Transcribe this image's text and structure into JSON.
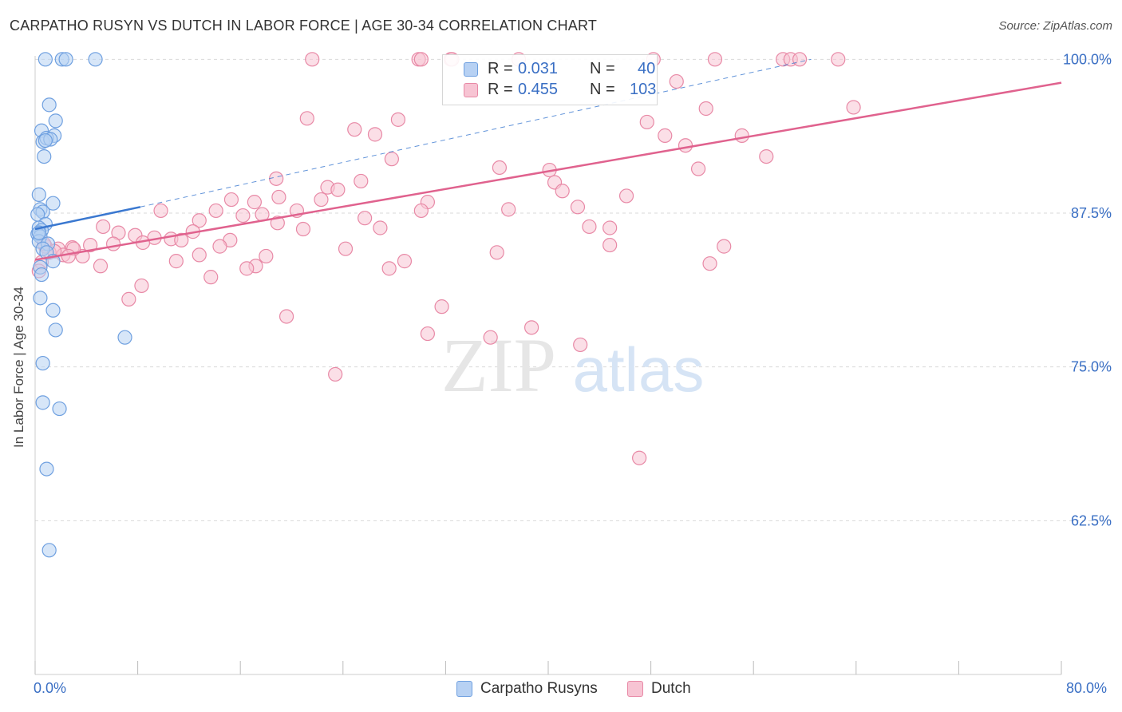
{
  "title": "CARPATHO RUSYN VS DUTCH IN LABOR FORCE | AGE 30-34 CORRELATION CHART",
  "source": "Source: ZipAtlas.com",
  "watermark": {
    "zip": "ZIP",
    "atlas": "atlas"
  },
  "legend_top": {
    "r_label": "R =",
    "n_label": "N =",
    "rows": [
      {
        "r": "0.031",
        "n": "40"
      },
      {
        "r": "0.455",
        "n": "103"
      }
    ]
  },
  "legend_bottom": [
    "Carpatho Rusyns",
    "Dutch"
  ],
  "colors": {
    "blue_fill": "#b7d1f3",
    "blue_stroke": "#6fa0e0",
    "blue_line": "#3a78d0",
    "pink_fill": "#f7c4d3",
    "pink_stroke": "#e889a6",
    "pink_line": "#e0628e",
    "accent_text": "#3a6fc4",
    "grid": "#d9d9d9"
  },
  "chart_data": {
    "type": "scatter",
    "title": "CARPATHO RUSYN VS DUTCH IN LABOR FORCE | AGE 30-34 CORRELATION CHART",
    "xlabel": "",
    "ylabel": "In Labor Force | Age 30-34",
    "xlim": [
      0,
      80
    ],
    "ylim": [
      50,
      100.8
    ],
    "x_tick_labels": [
      "0.0%",
      "80.0%"
    ],
    "y_ticks": [
      100,
      87.5,
      75,
      62.5
    ],
    "y_tick_labels": [
      "100.0%",
      "87.5%",
      "75.0%",
      "62.5%"
    ],
    "series": [
      {
        "name": "Carpatho Rusyns",
        "r": 0.031,
        "n": 40,
        "trend_solid": [
          [
            0,
            86.2
          ],
          [
            8.2,
            88.0
          ]
        ],
        "trend_dashed": [
          [
            8.2,
            88.0
          ],
          [
            60.5,
            100.0
          ]
        ],
        "points": [
          [
            0.8,
            100.0
          ],
          [
            2.1,
            100.0
          ],
          [
            2.4,
            100.0
          ],
          [
            4.7,
            100.0
          ],
          [
            1.1,
            96.3
          ],
          [
            1.6,
            95.0
          ],
          [
            0.5,
            94.2
          ],
          [
            1.5,
            93.8
          ],
          [
            0.6,
            93.3
          ],
          [
            0.9,
            93.6
          ],
          [
            1.2,
            93.5
          ],
          [
            0.8,
            93.4
          ],
          [
            0.7,
            92.1
          ],
          [
            0.3,
            89.0
          ],
          [
            1.4,
            88.3
          ],
          [
            0.4,
            87.8
          ],
          [
            0.6,
            87.6
          ],
          [
            0.2,
            87.4
          ],
          [
            0.8,
            86.6
          ],
          [
            0.3,
            86.3
          ],
          [
            0.5,
            86.1
          ],
          [
            0.2,
            85.8
          ],
          [
            0.4,
            85.6
          ],
          [
            0.3,
            85.2
          ],
          [
            1.0,
            85.0
          ],
          [
            0.6,
            84.6
          ],
          [
            0.9,
            84.3
          ],
          [
            1.4,
            83.6
          ],
          [
            0.4,
            83.1
          ],
          [
            0.5,
            82.5
          ],
          [
            0.4,
            80.6
          ],
          [
            1.4,
            79.6
          ],
          [
            1.6,
            78.0
          ],
          [
            7.0,
            77.4
          ],
          [
            0.6,
            75.3
          ],
          [
            0.6,
            72.1
          ],
          [
            1.9,
            71.6
          ],
          [
            0.9,
            66.7
          ],
          [
            1.1,
            60.1
          ],
          [
            0.3,
            85.9
          ]
        ]
      },
      {
        "name": "Dutch",
        "r": 0.455,
        "n": 103,
        "trend_solid": [
          [
            0,
            83.7
          ],
          [
            80,
            98.1
          ]
        ],
        "points": [
          [
            21.6,
            100.0
          ],
          [
            29.9,
            100.0
          ],
          [
            30.1,
            100.0
          ],
          [
            32.4,
            100.0
          ],
          [
            32.5,
            100.0
          ],
          [
            37.7,
            100.0
          ],
          [
            48.2,
            100.0
          ],
          [
            53.0,
            100.0
          ],
          [
            58.3,
            100.0
          ],
          [
            58.9,
            100.0
          ],
          [
            59.6,
            100.0
          ],
          [
            62.6,
            100.0
          ],
          [
            50.0,
            98.2
          ],
          [
            63.8,
            96.1
          ],
          [
            52.3,
            96.0
          ],
          [
            21.2,
            95.2
          ],
          [
            28.3,
            95.1
          ],
          [
            24.9,
            94.3
          ],
          [
            47.7,
            94.9
          ],
          [
            26.5,
            93.9
          ],
          [
            49.1,
            93.8
          ],
          [
            55.1,
            93.8
          ],
          [
            50.7,
            93.0
          ],
          [
            27.8,
            91.9
          ],
          [
            57.0,
            92.1
          ],
          [
            36.2,
            91.2
          ],
          [
            40.1,
            91.0
          ],
          [
            18.8,
            90.3
          ],
          [
            25.4,
            90.1
          ],
          [
            51.7,
            91.1
          ],
          [
            40.5,
            90.0
          ],
          [
            22.8,
            89.6
          ],
          [
            23.6,
            89.4
          ],
          [
            41.1,
            89.3
          ],
          [
            17.1,
            88.4
          ],
          [
            15.3,
            88.6
          ],
          [
            19.0,
            88.8
          ],
          [
            22.3,
            88.6
          ],
          [
            46.1,
            88.9
          ],
          [
            30.6,
            88.4
          ],
          [
            42.3,
            88.0
          ],
          [
            9.8,
            87.7
          ],
          [
            20.4,
            87.7
          ],
          [
            14.1,
            87.7
          ],
          [
            17.7,
            87.4
          ],
          [
            25.7,
            87.1
          ],
          [
            16.2,
            87.3
          ],
          [
            36.9,
            87.8
          ],
          [
            30.1,
            87.7
          ],
          [
            12.8,
            86.9
          ],
          [
            18.9,
            86.7
          ],
          [
            20.9,
            86.2
          ],
          [
            26.9,
            86.3
          ],
          [
            12.3,
            86.0
          ],
          [
            5.3,
            86.4
          ],
          [
            6.5,
            85.9
          ],
          [
            7.8,
            85.7
          ],
          [
            9.3,
            85.5
          ],
          [
            10.6,
            85.4
          ],
          [
            11.4,
            85.3
          ],
          [
            8.4,
            85.1
          ],
          [
            15.2,
            85.3
          ],
          [
            6.1,
            85.0
          ],
          [
            4.3,
            84.9
          ],
          [
            2.9,
            84.7
          ],
          [
            1.8,
            84.6
          ],
          [
            14.4,
            84.8
          ],
          [
            24.2,
            84.6
          ],
          [
            36.0,
            84.3
          ],
          [
            53.7,
            84.8
          ],
          [
            44.8,
            84.9
          ],
          [
            43.2,
            86.4
          ],
          [
            44.8,
            86.3
          ],
          [
            12.8,
            84.1
          ],
          [
            18.0,
            84.0
          ],
          [
            11.0,
            83.6
          ],
          [
            3.7,
            84.0
          ],
          [
            1.1,
            84.3
          ],
          [
            0.8,
            84.8
          ],
          [
            2.2,
            84.1
          ],
          [
            17.2,
            83.2
          ],
          [
            16.5,
            83.0
          ],
          [
            5.1,
            83.2
          ],
          [
            27.6,
            83.0
          ],
          [
            28.8,
            83.6
          ],
          [
            52.6,
            83.4
          ],
          [
            13.7,
            82.3
          ],
          [
            8.3,
            81.6
          ],
          [
            0.5,
            83.5
          ],
          [
            0.3,
            82.8
          ],
          [
            7.3,
            80.5
          ],
          [
            31.7,
            79.9
          ],
          [
            19.6,
            79.1
          ],
          [
            30.6,
            77.7
          ],
          [
            35.5,
            77.4
          ],
          [
            38.7,
            78.2
          ],
          [
            42.5,
            76.8
          ],
          [
            23.4,
            74.4
          ],
          [
            47.1,
            67.6
          ],
          [
            0.7,
            85.0
          ],
          [
            1.5,
            84.4
          ],
          [
            3.0,
            84.6
          ],
          [
            2.6,
            84.0
          ]
        ]
      }
    ]
  }
}
